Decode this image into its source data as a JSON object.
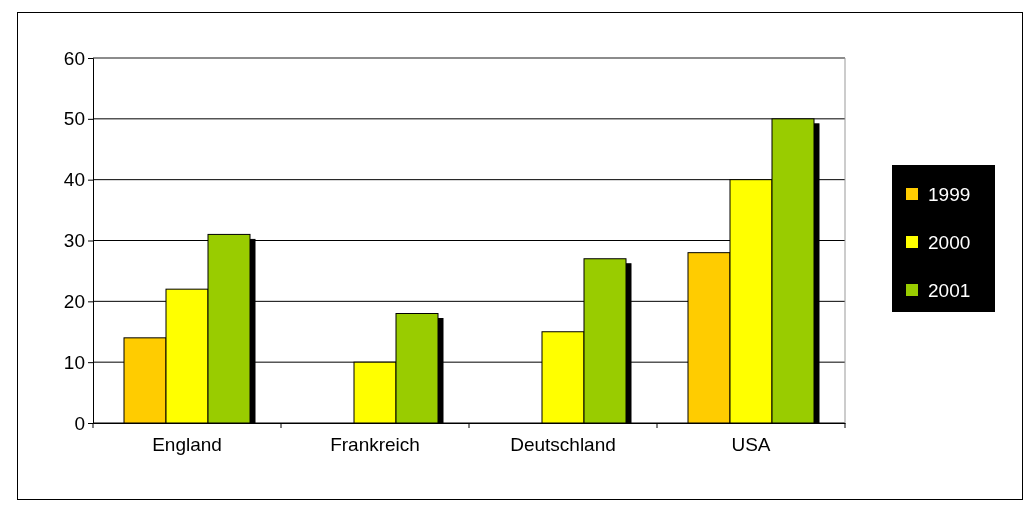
{
  "chart_data": {
    "type": "bar",
    "categories": [
      "England",
      "Frankreich",
      "Deutschland",
      "USA"
    ],
    "series": [
      {
        "name": "1999",
        "color": "#ffcc00",
        "values": [
          14,
          null,
          null,
          28
        ]
      },
      {
        "name": "2000",
        "color": "#ffff00",
        "values": [
          22,
          10,
          15,
          40
        ]
      },
      {
        "name": "2001",
        "color": "#99cc00",
        "values": [
          31,
          18,
          27,
          50
        ]
      }
    ],
    "ylim": [
      0,
      60
    ],
    "yticks": [
      0,
      10,
      20,
      30,
      40,
      50,
      60
    ],
    "grid": "y",
    "legend": "right"
  }
}
